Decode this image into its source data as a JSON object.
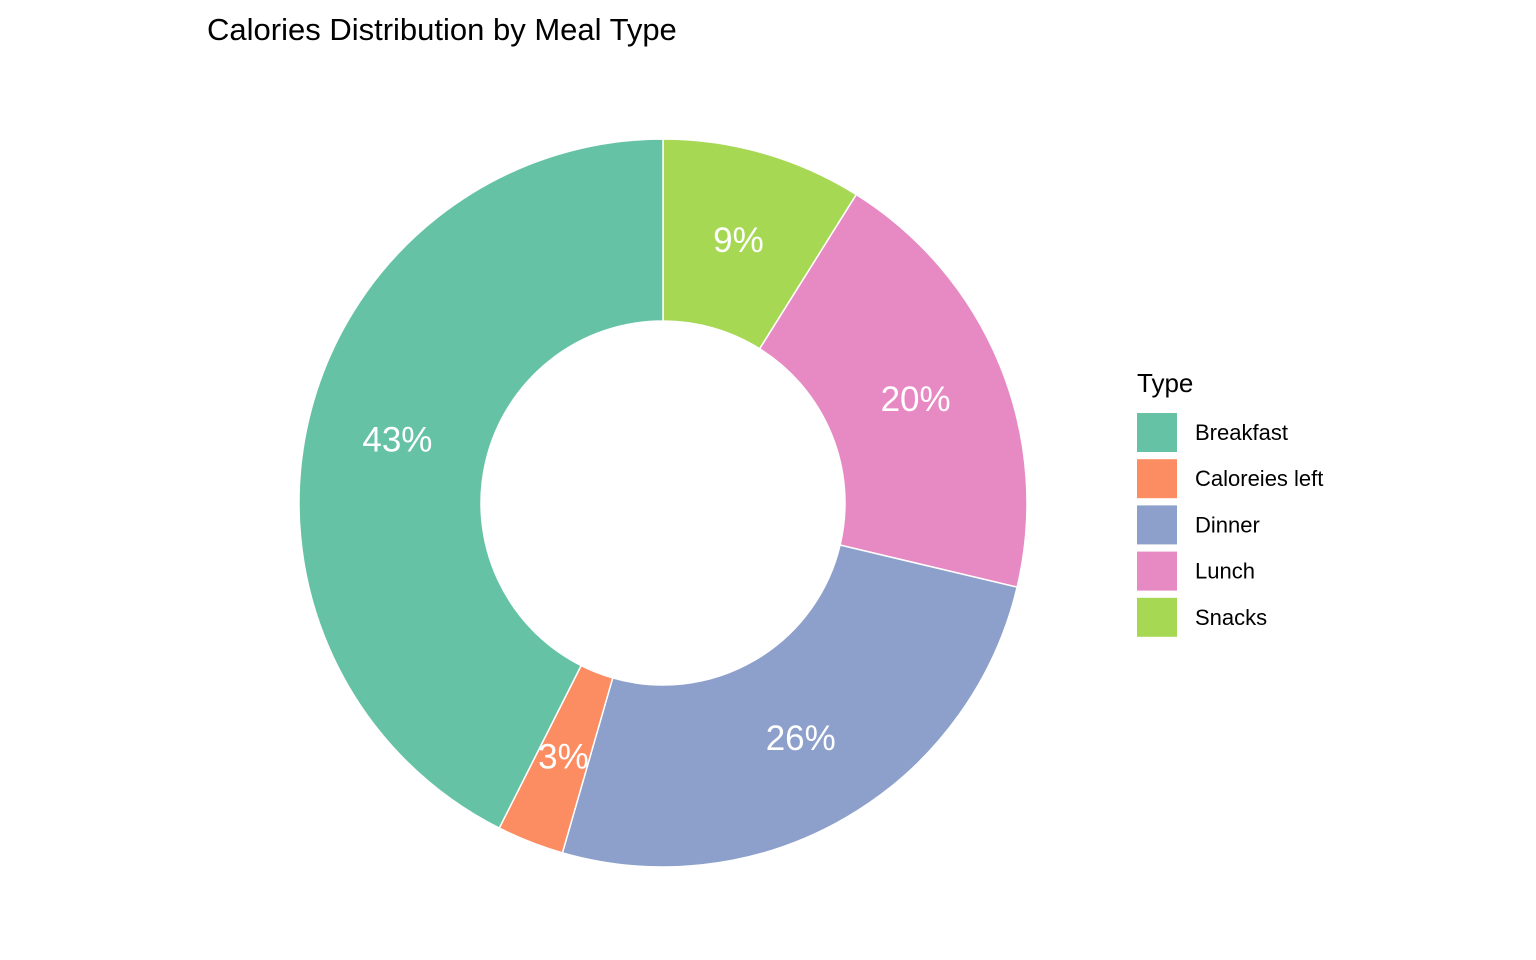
{
  "chart_data": {
    "type": "pie",
    "variant": "donut",
    "title": "Calories Distribution by Meal Type",
    "slices": [
      {
        "name": "Snacks",
        "percent": 9,
        "label": "9%",
        "color": "#A6D854"
      },
      {
        "name": "Lunch",
        "percent": 20,
        "label": "20%",
        "color": "#E78AC3"
      },
      {
        "name": "Dinner",
        "percent": 26,
        "label": "26%",
        "color": "#8DA0CB"
      },
      {
        "name": "Caloreies left",
        "percent": 3,
        "label": "3%",
        "color": "#FC8D62"
      },
      {
        "name": "Breakfast",
        "percent": 43,
        "label": "43%",
        "color": "#66C2A5"
      }
    ],
    "legend": {
      "title": "Type",
      "position": "right",
      "items": [
        {
          "label": "Breakfast",
          "color": "#66C2A5"
        },
        {
          "label": "Caloreies left",
          "color": "#FC8D62"
        },
        {
          "label": "Dinner",
          "color": "#8DA0CB"
        },
        {
          "label": "Lunch",
          "color": "#E78AC3"
        },
        {
          "label": "Snacks",
          "color": "#A6D854"
        }
      ]
    },
    "start_angle": "12 o'clock",
    "direction": "clockwise"
  }
}
